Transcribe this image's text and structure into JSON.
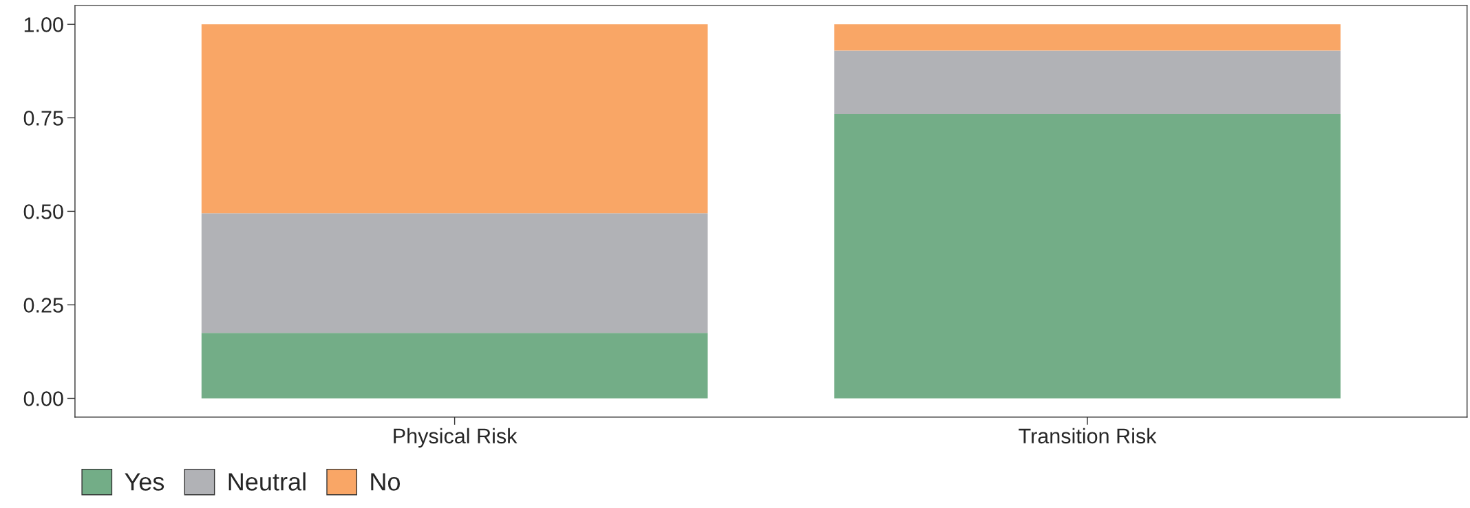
{
  "chart_data": {
    "type": "bar",
    "stacked": true,
    "categories": [
      "Physical Risk",
      "Transition Risk"
    ],
    "series": [
      {
        "name": "Yes",
        "color": "#73ad87",
        "values": [
          0.175,
          0.76
        ]
      },
      {
        "name": "Neutral",
        "color": "#b1b2b6",
        "values": [
          0.32,
          0.17
        ]
      },
      {
        "name": "No",
        "color": "#f9a666",
        "values": [
          0.505,
          0.07
        ]
      }
    ],
    "ylim": [
      -0.05,
      1.05
    ],
    "yticks": [
      {
        "value": 0,
        "label": "0.00"
      },
      {
        "value": 0.25,
        "label": "0.25"
      },
      {
        "value": 0.5,
        "label": "0.50"
      },
      {
        "value": 0.75,
        "label": "0.75"
      },
      {
        "value": 1,
        "label": "1.00"
      }
    ],
    "grid": false,
    "legend": "bottom left"
  }
}
